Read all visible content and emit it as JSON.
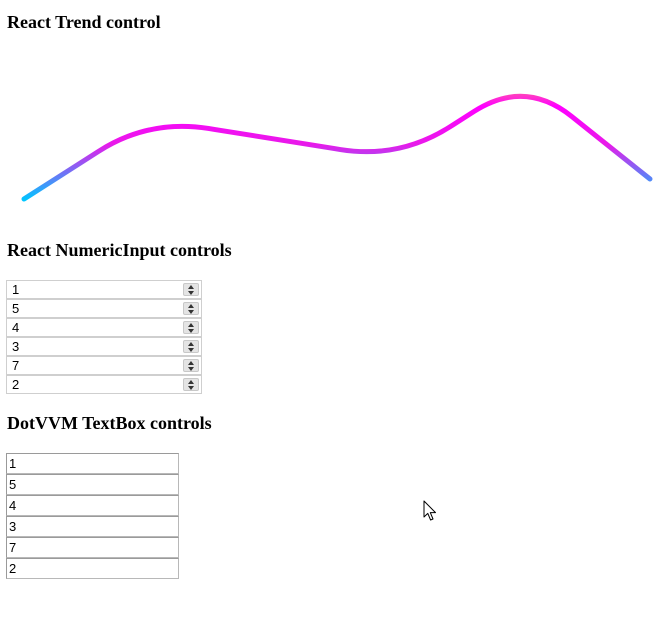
{
  "headings": {
    "trend": "React Trend control",
    "numeric": "React NumericInput controls",
    "textbox": "DotVVM TextBox controls"
  },
  "values": [
    "1",
    "5",
    "4",
    "3",
    "7",
    "2"
  ],
  "trend": {
    "gradient": [
      "#00c6ff",
      "#F0F",
      "#FF0"
    ],
    "stroke_color_note": "gradient cyan to magenta to yellow"
  },
  "cursor": {
    "icon": "mouse-pointer-icon"
  }
}
